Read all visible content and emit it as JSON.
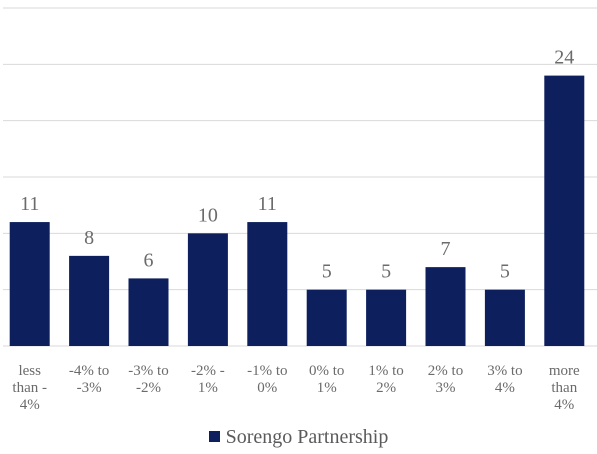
{
  "chart_data": {
    "type": "bar",
    "categories": [
      [
        "less",
        "than -",
        "4%"
      ],
      [
        "-4% to",
        "-3%"
      ],
      [
        "-3% to",
        "-2%"
      ],
      [
        "-2% -",
        "1%"
      ],
      [
        "-1% to",
        "0%"
      ],
      [
        "0% to",
        "1%"
      ],
      [
        "1% to",
        "2%"
      ],
      [
        "2% to",
        "3%"
      ],
      [
        "3% to",
        "4%"
      ],
      [
        "more",
        "than",
        "4%"
      ]
    ],
    "series": [
      {
        "name": "Sorengo Partnership",
        "values": [
          11,
          8,
          6,
          10,
          11,
          5,
          5,
          7,
          5,
          24
        ]
      }
    ],
    "ylim": [
      0,
      30
    ],
    "grid": true,
    "legend": "bottom",
    "colors": {
      "bar": "#0d1f5c",
      "grid": "#d9d9d9",
      "label": "#6b6b6b"
    }
  }
}
